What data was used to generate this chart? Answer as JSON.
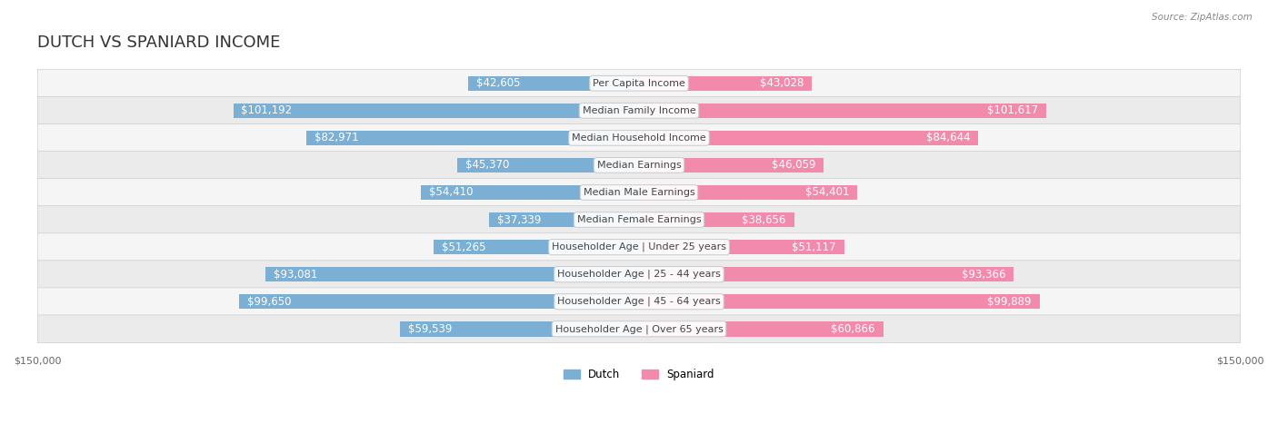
{
  "title": "DUTCH VS SPANIARD INCOME",
  "source": "Source: ZipAtlas.com",
  "categories": [
    "Per Capita Income",
    "Median Family Income",
    "Median Household Income",
    "Median Earnings",
    "Median Male Earnings",
    "Median Female Earnings",
    "Householder Age | Under 25 years",
    "Householder Age | 25 - 44 years",
    "Householder Age | 45 - 64 years",
    "Householder Age | Over 65 years"
  ],
  "dutch_values": [
    42605,
    101192,
    82971,
    45370,
    54410,
    37339,
    51265,
    93081,
    99650,
    59539
  ],
  "spaniard_values": [
    43028,
    101617,
    84644,
    46059,
    54401,
    38656,
    51117,
    93366,
    99889,
    60866
  ],
  "dutch_color": "#7bafd4",
  "spaniard_color": "#f28bab",
  "dutch_label_color_normal": "#888888",
  "dutch_label_color_inside": "#ffffff",
  "spaniard_label_color_normal": "#888888",
  "spaniard_label_color_inside": "#ffffff",
  "max_value": 150000,
  "row_bg_color": "#f0f0f0",
  "row_bg_color_alt": "#e8e8e8",
  "bar_height": 0.55,
  "background_color": "#ffffff",
  "title_fontsize": 13,
  "label_fontsize": 8.5,
  "category_fontsize": 8,
  "axis_label_fontsize": 8,
  "inside_threshold": 30000
}
